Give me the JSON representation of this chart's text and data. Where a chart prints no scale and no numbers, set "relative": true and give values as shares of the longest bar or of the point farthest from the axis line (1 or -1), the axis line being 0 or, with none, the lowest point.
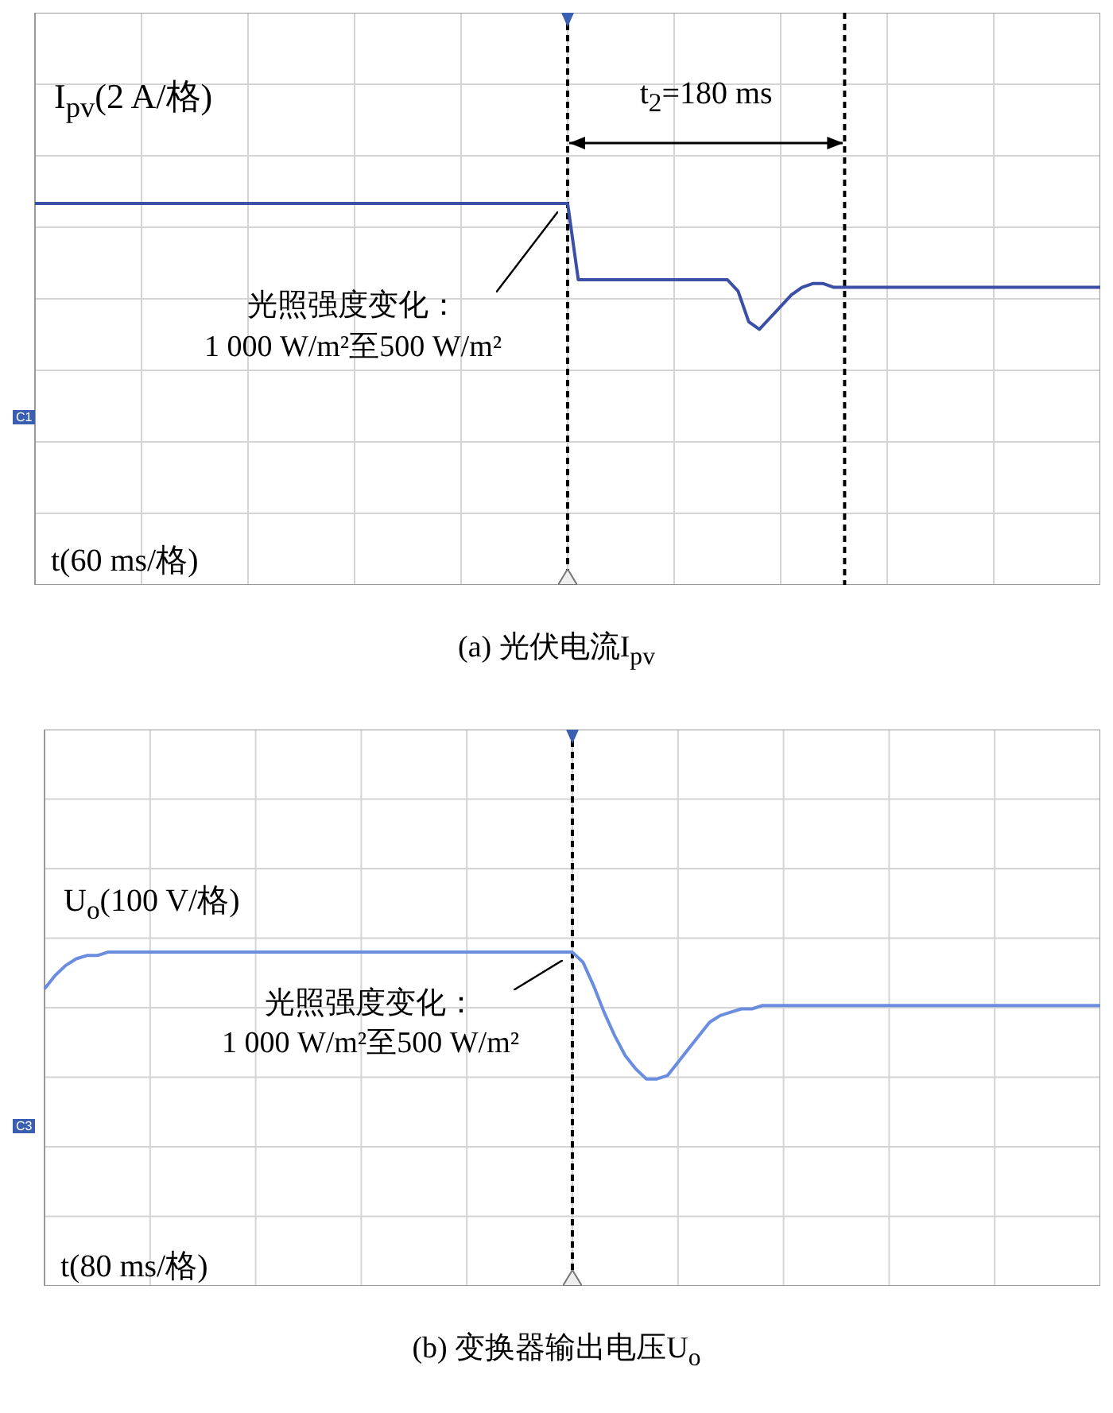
{
  "chart_data": [
    {
      "type": "line",
      "title": "(a) 光伏电流I$_{pv}$",
      "relative": true,
      "grid": true,
      "legend": false,
      "marker": "none",
      "color": "#3c4fa6",
      "categories": [
        null,
        null,
        null,
        null,
        null,
        null,
        null,
        null,
        null,
        null,
        null,
        null,
        null,
        null,
        null,
        null,
        null,
        null,
        null,
        null,
        null,
        null,
        null,
        null,
        null,
        null,
        null,
        null,
        null,
        null,
        null,
        null,
        null,
        null,
        null,
        null,
        null,
        null,
        null,
        null,
        null,
        null,
        null,
        null,
        null,
        null,
        null,
        null,
        null,
        null,
        null,
        null,
        null,
        null,
        null,
        null,
        null,
        null,
        null,
        null,
        null,
        null,
        null,
        null,
        null,
        null,
        null,
        null,
        null,
        null,
        null,
        null,
        null,
        null,
        null,
        null,
        null,
        null,
        null,
        null,
        null,
        null,
        null,
        null,
        null,
        null,
        null,
        null,
        null,
        null,
        null,
        null,
        null,
        null,
        null,
        null,
        null,
        null,
        null,
        null,
        null
      ],
      "values": [
        1,
        1,
        1,
        1,
        1,
        1,
        1,
        1,
        1,
        1,
        1,
        1,
        1,
        1,
        1,
        1,
        1,
        1,
        1,
        1,
        1,
        1,
        1,
        1,
        1,
        1,
        1,
        1,
        1,
        1,
        1,
        1,
        1,
        1,
        1,
        1,
        1,
        1,
        1,
        1,
        1,
        1,
        1,
        1,
        1,
        1,
        1,
        1,
        1,
        1,
        1,
        0.8,
        0.8,
        0.8,
        0.8,
        0.8,
        0.8,
        0.8,
        0.8,
        0.8,
        0.8,
        0.8,
        0.8,
        0.8,
        0.8,
        0.8,
        0.77,
        0.69,
        0.67,
        0.7,
        0.73,
        0.76,
        0.78,
        0.79,
        0.79,
        0.78,
        0.78,
        0.78,
        0.78,
        0.78,
        0.78,
        0.78,
        0.78,
        0.78,
        0.78,
        0.78,
        0.78,
        0.78,
        0.78,
        0.78,
        0.78,
        0.78,
        0.78,
        0.78,
        0.78,
        0.78,
        0.78,
        0.78,
        0.78,
        0.78,
        0.78
      ],
      "annotations": [
        "I$_{pv}$(2 A/格)",
        "t(60 ms/格)",
        "光照强度变化：\n1 000 W/m²至500 W/m²",
        "t$_{2}$=180 ms",
        "C1"
      ]
    },
    {
      "type": "line",
      "title": "(b) 变换器输出电压U$_{o}$",
      "relative": true,
      "grid": true,
      "legend": false,
      "marker": "none",
      "color": "#6a8ddf",
      "categories": [
        null,
        null,
        null,
        null,
        null,
        null,
        null,
        null,
        null,
        null,
        null,
        null,
        null,
        null,
        null,
        null,
        null,
        null,
        null,
        null,
        null,
        null,
        null,
        null,
        null,
        null,
        null,
        null,
        null,
        null,
        null,
        null,
        null,
        null,
        null,
        null,
        null,
        null,
        null,
        null,
        null,
        null,
        null,
        null,
        null,
        null,
        null,
        null,
        null,
        null,
        null,
        null,
        null,
        null,
        null,
        null,
        null,
        null,
        null,
        null,
        null,
        null,
        null,
        null,
        null,
        null,
        null,
        null,
        null,
        null,
        null,
        null,
        null,
        null,
        null,
        null,
        null,
        null,
        null,
        null,
        null,
        null,
        null,
        null,
        null,
        null,
        null,
        null,
        null,
        null,
        null,
        null,
        null,
        null,
        null,
        null,
        null,
        null,
        null,
        null,
        null
      ],
      "values": [
        0.89,
        0.93,
        0.96,
        0.98,
        0.99,
        0.99,
        1,
        1,
        1,
        1,
        1,
        1,
        1,
        1,
        1,
        1,
        1,
        1,
        1,
        1,
        1,
        1,
        1,
        1,
        1,
        1,
        1,
        1,
        1,
        1,
        1,
        1,
        1,
        1,
        1,
        1,
        1,
        1,
        1,
        1,
        1,
        1,
        1,
        1,
        1,
        1,
        1,
        1,
        1,
        1,
        1,
        0.97,
        0.9,
        0.82,
        0.75,
        0.69,
        0.65,
        0.62,
        0.62,
        0.63,
        0.67,
        0.71,
        0.75,
        0.79,
        0.81,
        0.82,
        0.83,
        0.83,
        0.84,
        0.84,
        0.84,
        0.84,
        0.84,
        0.84,
        0.84,
        0.84,
        0.84,
        0.84,
        0.84,
        0.84,
        0.84,
        0.84,
        0.84,
        0.84,
        0.84,
        0.84,
        0.84,
        0.84,
        0.84,
        0.84,
        0.84,
        0.84,
        0.84,
        0.84,
        0.84,
        0.84,
        0.84,
        0.84,
        0.84,
        0.84,
        0.84
      ],
      "annotations": [
        "U$_{o}$(100 V/格)",
        "t(80 ms/格)",
        "光照强度变化：\n1 000 W/m²至500 W/m²",
        "C3"
      ]
    }
  ]
}
